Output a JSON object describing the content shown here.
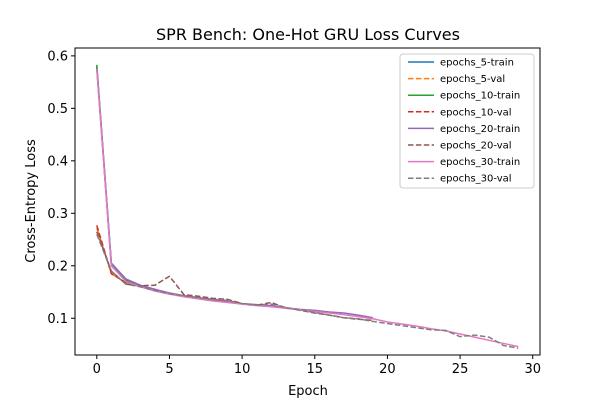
{
  "chart_data": {
    "type": "line",
    "title": "SPR Bench: One-Hot GRU Loss Curves",
    "xlabel": "Epoch",
    "ylabel": "Cross-Entropy Loss",
    "xlim": [
      -1.5,
      30.5
    ],
    "ylim": [
      0.03,
      0.615
    ],
    "xticks": [
      0,
      5,
      10,
      15,
      20,
      25,
      30
    ],
    "yticks": [
      0.1,
      0.2,
      0.3,
      0.4,
      0.5,
      0.6
    ],
    "grid": false,
    "legend_position": "top-right",
    "series": [
      {
        "name": "epochs_5-train",
        "color": "#1f77b4",
        "style": "solid",
        "x": [
          0,
          1,
          2,
          3,
          4
        ],
        "y": [
          0.58,
          0.2,
          0.172,
          0.162,
          0.155
        ]
      },
      {
        "name": "epochs_5-val",
        "color": "#ff7f0e",
        "style": "dashed",
        "x": [
          0,
          1,
          2,
          3,
          4
        ],
        "y": [
          0.272,
          0.185,
          0.168,
          0.16,
          0.155
        ]
      },
      {
        "name": "epochs_10-train",
        "color": "#2ca02c",
        "style": "solid",
        "x": [
          0,
          1,
          2,
          3,
          4,
          5,
          6,
          7,
          8,
          9
        ],
        "y": [
          0.583,
          0.205,
          0.173,
          0.162,
          0.154,
          0.148,
          0.143,
          0.139,
          0.135,
          0.132
        ]
      },
      {
        "name": "epochs_10-val",
        "color": "#d62728",
        "style": "dashed",
        "x": [
          0,
          1,
          2,
          3,
          4,
          5,
          6,
          7,
          8,
          9
        ],
        "y": [
          0.277,
          0.185,
          0.168,
          0.16,
          0.155,
          0.148,
          0.142,
          0.138,
          0.136,
          0.133
        ]
      },
      {
        "name": "epochs_20-train",
        "color": "#9467bd",
        "style": "solid",
        "x": [
          0,
          1,
          2,
          3,
          4,
          5,
          6,
          7,
          8,
          9,
          10,
          11,
          12,
          13,
          14,
          15,
          16,
          17,
          18,
          19
        ],
        "y": [
          0.575,
          0.205,
          0.175,
          0.163,
          0.155,
          0.148,
          0.143,
          0.139,
          0.135,
          0.132,
          0.128,
          0.126,
          0.124,
          0.12,
          0.117,
          0.115,
          0.112,
          0.11,
          0.106,
          0.101
        ]
      },
      {
        "name": "epochs_20-val",
        "color": "#8c564b",
        "style": "dashed",
        "x": [
          0,
          1,
          2,
          3,
          4,
          5,
          6,
          7,
          8,
          9,
          10,
          11,
          12,
          13,
          14,
          15,
          16,
          17,
          18,
          19
        ],
        "y": [
          0.265,
          0.19,
          0.165,
          0.162,
          0.163,
          0.18,
          0.145,
          0.142,
          0.138,
          0.136,
          0.128,
          0.125,
          0.13,
          0.12,
          0.115,
          0.11,
          0.106,
          0.101,
          0.098,
          0.096
        ]
      },
      {
        "name": "epochs_30-train",
        "color": "#e377c2",
        "style": "solid",
        "x": [
          0,
          1,
          2,
          3,
          4,
          5,
          6,
          7,
          8,
          9,
          10,
          11,
          12,
          13,
          14,
          15,
          16,
          17,
          18,
          19,
          20,
          21,
          22,
          23,
          24,
          25,
          26,
          27,
          28,
          29
        ],
        "y": [
          0.575,
          0.2,
          0.17,
          0.16,
          0.152,
          0.146,
          0.141,
          0.137,
          0.133,
          0.13,
          0.127,
          0.124,
          0.122,
          0.119,
          0.116,
          0.113,
          0.11,
          0.107,
          0.103,
          0.099,
          0.093,
          0.089,
          0.085,
          0.08,
          0.076,
          0.07,
          0.064,
          0.058,
          0.052,
          0.046
        ]
      },
      {
        "name": "epochs_30-val",
        "color": "#7f7f7f",
        "style": "dashed",
        "x": [
          0,
          1,
          2,
          3,
          4,
          5,
          6,
          7,
          8,
          9,
          10,
          11,
          12,
          13,
          14,
          15,
          16,
          17,
          18,
          19,
          20,
          21,
          22,
          23,
          24,
          25,
          26,
          27,
          28,
          29
        ],
        "y": [
          0.26,
          0.19,
          0.165,
          0.16,
          0.153,
          0.147,
          0.143,
          0.139,
          0.136,
          0.134,
          0.128,
          0.125,
          0.127,
          0.12,
          0.116,
          0.111,
          0.106,
          0.101,
          0.099,
          0.094,
          0.09,
          0.086,
          0.082,
          0.078,
          0.077,
          0.065,
          0.068,
          0.064,
          0.048,
          0.043
        ]
      }
    ]
  }
}
